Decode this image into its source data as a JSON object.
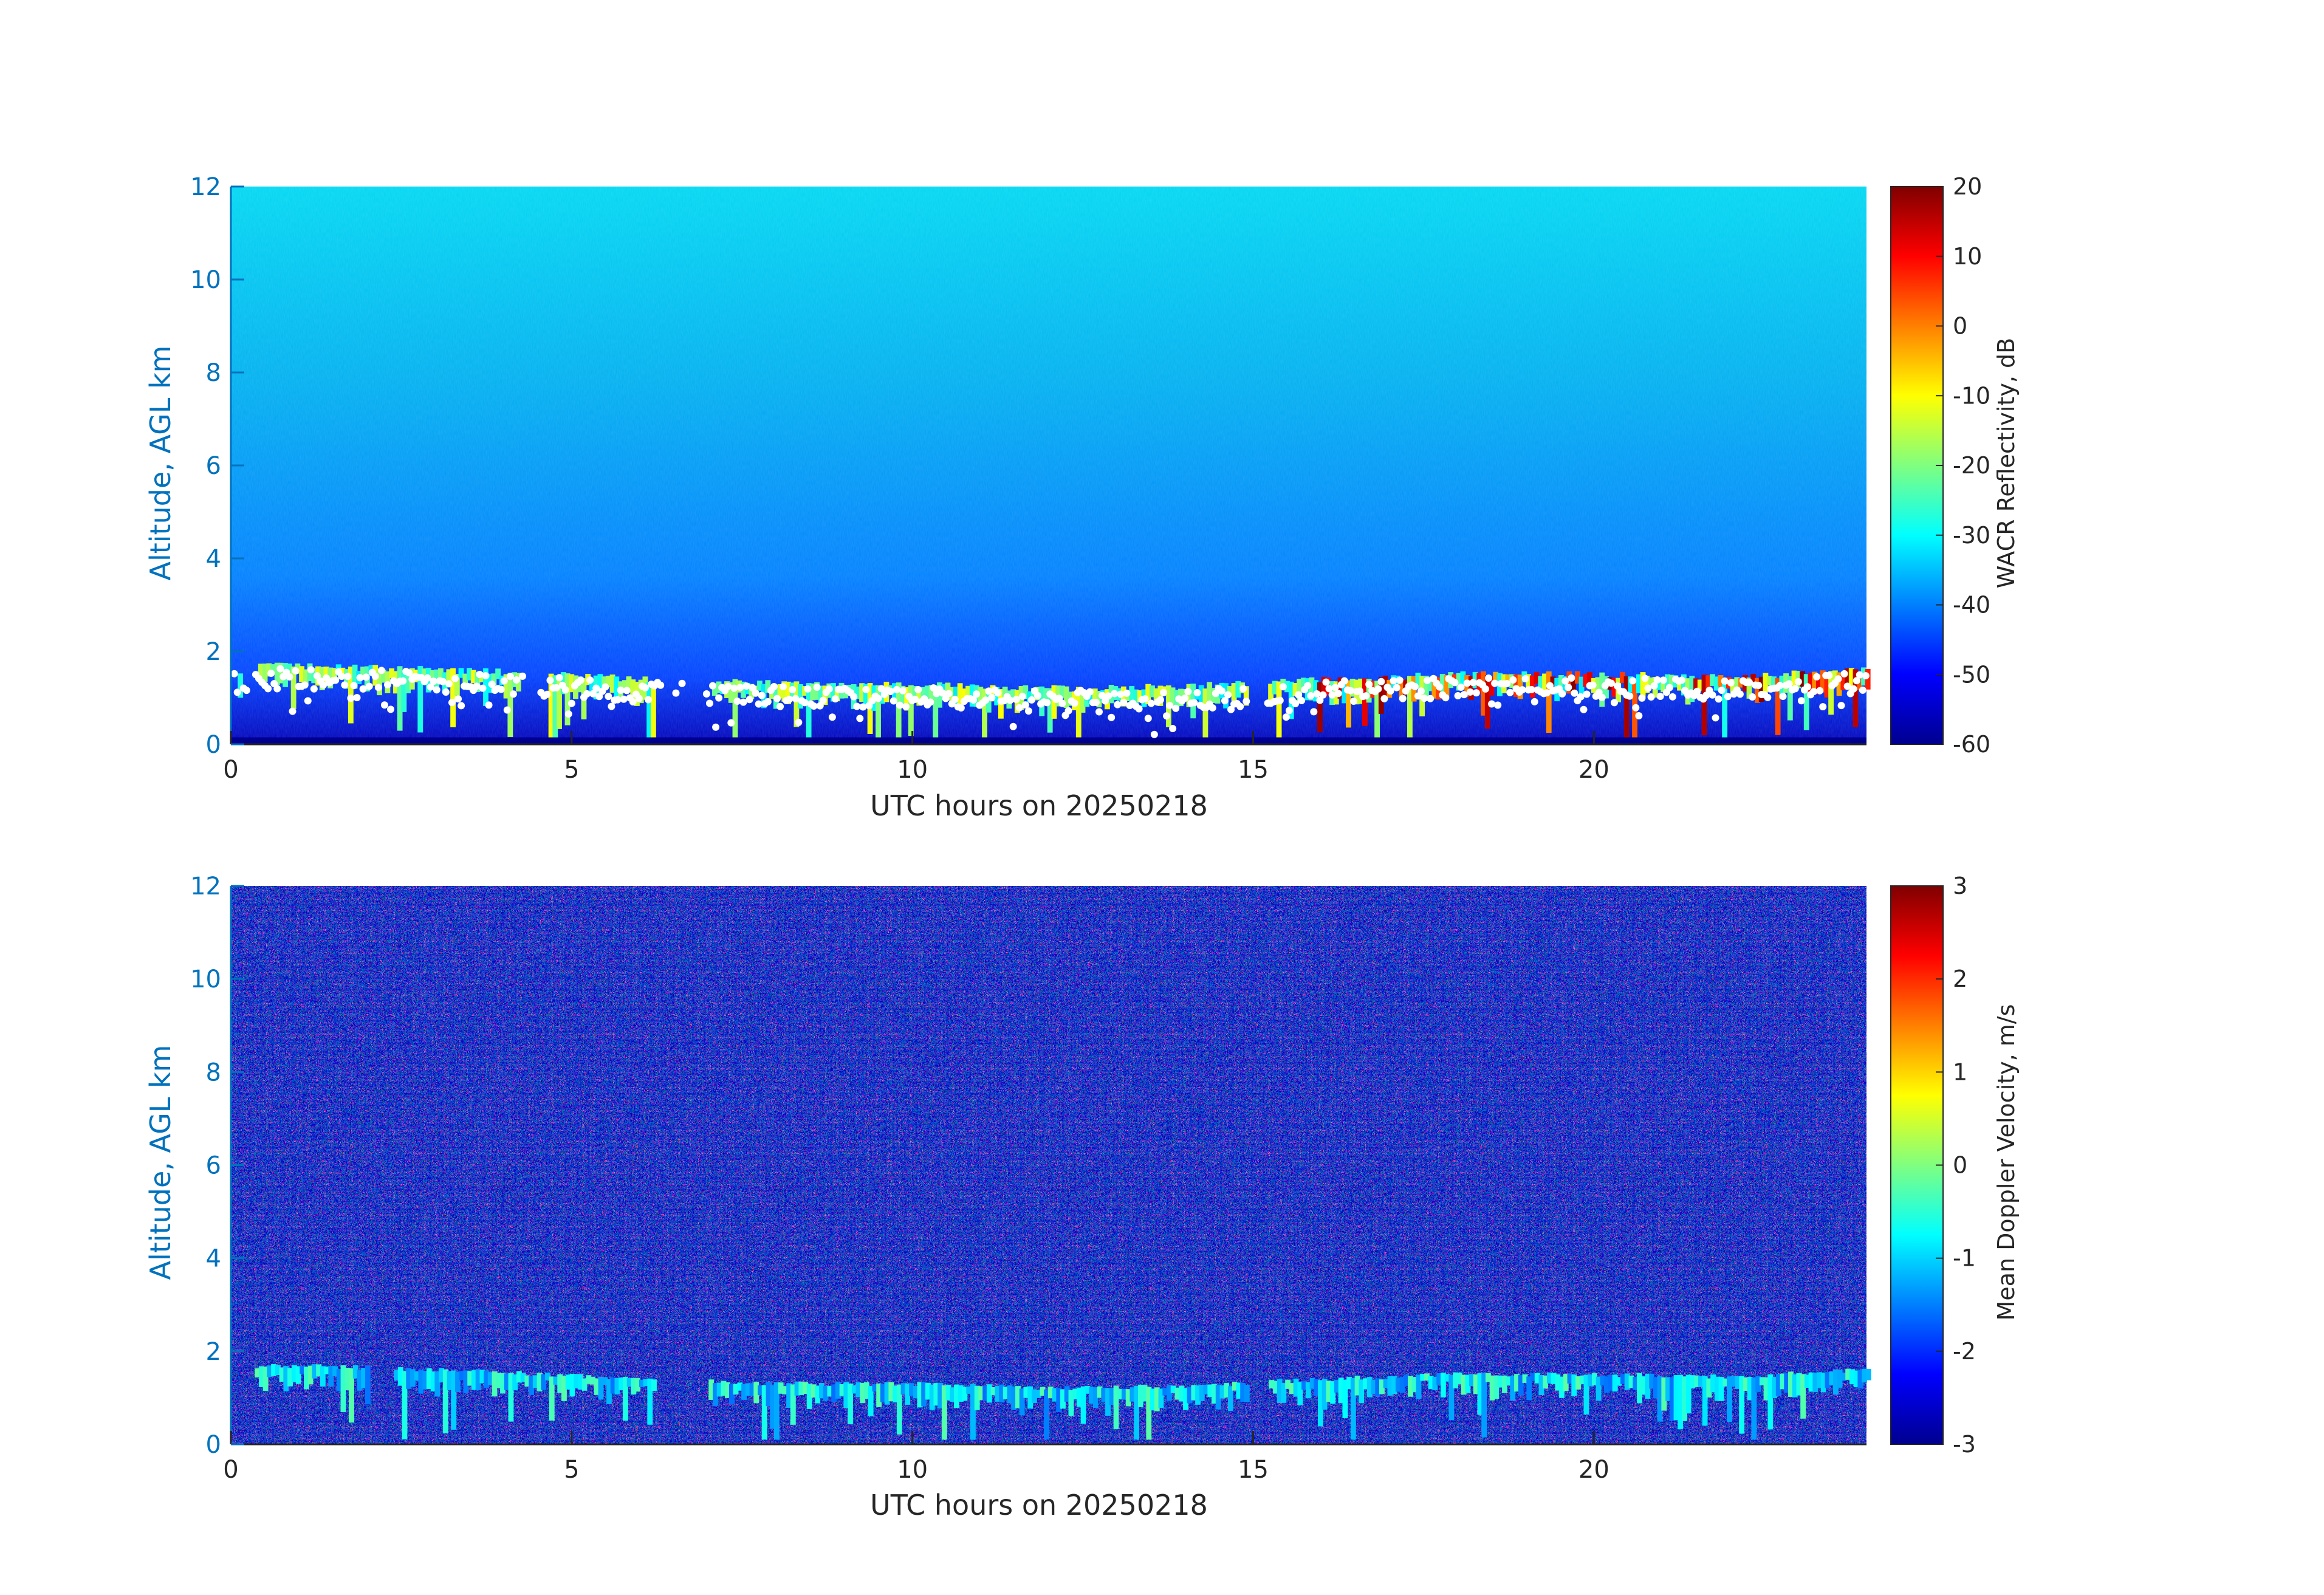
{
  "chart_data": [
    {
      "type": "heatmap",
      "xlabel": "UTC hours on 20250218",
      "ylabel": "Altitude, AGL km",
      "xlim": [
        0,
        24
      ],
      "ylim": [
        0,
        12
      ],
      "xticks": [
        0,
        5,
        10,
        15,
        20
      ],
      "yticks": [
        0,
        2,
        4,
        6,
        8,
        10,
        12
      ],
      "colorbar": {
        "label": "WACR Reflectivity, dB",
        "range": [
          -60,
          20
        ],
        "ticks": [
          -60,
          -50,
          -40,
          -30,
          -20,
          -10,
          0,
          10,
          20
        ],
        "colormap": "jet"
      },
      "background_level": -40,
      "cloud_top_km": [
        1.7,
        1.65,
        1.55,
        1.4,
        1.3,
        1.3,
        1.2,
        1.25,
        1.4,
        1.5,
        1.5,
        1.45,
        1.6
      ],
      "cloud_top_x": [
        0.4,
        2.0,
        4.0,
        6.0,
        8.0,
        10.0,
        12.0,
        14.0,
        16.0,
        18.0,
        20.0,
        22.0,
        24.0
      ],
      "cloud_base_markers": "white dots",
      "grid": false
    },
    {
      "type": "heatmap",
      "xlabel": "UTC hours on 20250218",
      "ylabel": "Altitude, AGL km",
      "xlim": [
        0,
        24
      ],
      "ylim": [
        0,
        12
      ],
      "xticks": [
        0,
        5,
        10,
        15,
        20
      ],
      "yticks": [
        0,
        2,
        4,
        6,
        8,
        10,
        12
      ],
      "colorbar": {
        "label": "Mean Doppler Velocity, m/s",
        "range": [
          -3,
          3
        ],
        "ticks": [
          -3,
          -2,
          -1,
          0,
          1,
          2,
          3
        ],
        "colormap": "jet"
      },
      "background": "noise",
      "grid": false
    }
  ],
  "colors": {
    "ylabel": "#0072BD",
    "ytick": "#0072BD",
    "axis": "#262626"
  }
}
